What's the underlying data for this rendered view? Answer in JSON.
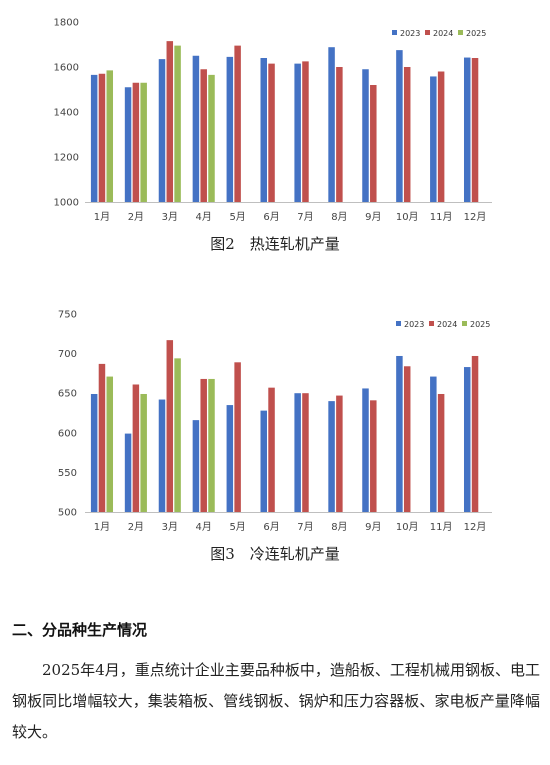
{
  "colors": {
    "2023": "#4472C4",
    "2024": "#C0504D",
    "2025": "#9BBB59"
  },
  "figures": [
    {
      "caption": "图2　热连轧机产量"
    },
    {
      "caption": "图3　冷连轧机产量"
    }
  ],
  "chart_data": [
    {
      "type": "bar",
      "title": "",
      "categories": [
        "1月",
        "2月",
        "3月",
        "4月",
        "5月",
        "6月",
        "7月",
        "8月",
        "9月",
        "10月",
        "11月",
        "12月"
      ],
      "yticks": [
        "1000",
        "1200",
        "1400",
        "1600",
        "1800"
      ],
      "ylim": [
        1000,
        1800
      ],
      "legend_position": "top-right",
      "series": [
        {
          "name": "2023",
          "values": [
            1565,
            1510,
            1635,
            1650,
            1645,
            1640,
            1615,
            1688,
            1590,
            1675,
            1558,
            1642
          ]
        },
        {
          "name": "2024",
          "values": [
            1570,
            1530,
            1715,
            1590,
            1695,
            1615,
            1625,
            1600,
            1520,
            1600,
            1580,
            1640
          ]
        },
        {
          "name": "2025",
          "values": [
            1585,
            1530,
            1695,
            1565,
            null,
            null,
            null,
            null,
            null,
            null,
            null,
            null
          ]
        }
      ]
    },
    {
      "type": "bar",
      "title": "",
      "categories": [
        "1月",
        "2月",
        "3月",
        "4月",
        "5月",
        "6月",
        "7月",
        "8月",
        "9月",
        "10月",
        "11月",
        "12月"
      ],
      "yticks": [
        "500",
        "550",
        "600",
        "650",
        "700",
        "750"
      ],
      "ylim": [
        500,
        750
      ],
      "legend_position": "top-right",
      "series": [
        {
          "name": "2023",
          "values": [
            649,
            599,
            642,
            616,
            635,
            628,
            650,
            640,
            656,
            697,
            671,
            683
          ]
        },
        {
          "name": "2024",
          "values": [
            687,
            661,
            717,
            668,
            689,
            657,
            650,
            647,
            641,
            684,
            649,
            697
          ]
        },
        {
          "name": "2025",
          "values": [
            671,
            649,
            694,
            668,
            null,
            null,
            null,
            null,
            null,
            null,
            null,
            null
          ]
        }
      ]
    }
  ],
  "section": {
    "heading": "二、分品种生产情况",
    "paragraph": "2025年4月，重点统计企业主要品种板中，造船板、工程机械用钢板、电工钢板同比增幅较大，集装箱板、管线钢板、锅炉和压力容器板、家电板产量降幅较大。"
  }
}
